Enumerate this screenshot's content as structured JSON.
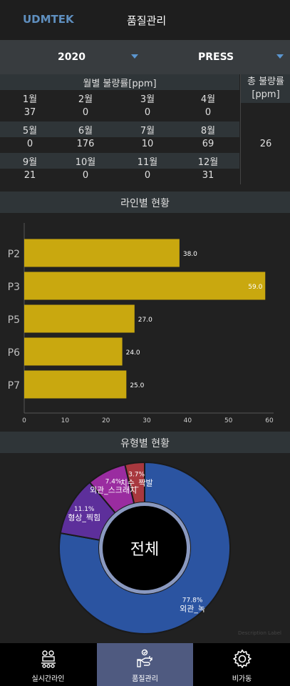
{
  "header": {
    "brand": "UDMTEK",
    "title": "품질관리"
  },
  "filters": {
    "year": "2020",
    "process": "PRESS"
  },
  "monthly": {
    "title": "월별 불량률[ppm]",
    "rows": [
      {
        "months": [
          "1월",
          "2월",
          "3월",
          "4월"
        ],
        "values": [
          "37",
          "0",
          "0",
          "0"
        ]
      },
      {
        "months": [
          "5월",
          "6월",
          "7월",
          "8월"
        ],
        "values": [
          "0",
          "176",
          "10",
          "69"
        ]
      },
      {
        "months": [
          "9월",
          "10월",
          "11월",
          "12월"
        ],
        "values": [
          "21",
          "0",
          "0",
          "31"
        ]
      }
    ],
    "total_label_line1": "총 불량률",
    "total_label_line2": "[ppm]",
    "total_value": "26"
  },
  "line_section": {
    "title": "라인별 현황"
  },
  "type_section": {
    "title": "유형별 현황",
    "center_label": "전체",
    "description_label": "Description Label"
  },
  "chart_data": [
    {
      "type": "bar",
      "orientation": "horizontal",
      "categories": [
        "P2",
        "P3",
        "P5",
        "P6",
        "P7"
      ],
      "values": [
        38.0,
        59.0,
        27.0,
        24.0,
        25.0
      ],
      "value_labels": [
        "38.0",
        "59.0",
        "27.0",
        "24.0",
        "25.0"
      ],
      "xlim": [
        0,
        60
      ],
      "xticks": [
        0,
        10,
        20,
        30,
        40,
        50,
        60
      ],
      "grid": false,
      "color": "#c9a80f"
    },
    {
      "type": "pie",
      "style": "donut",
      "slices": [
        {
          "name": "외관_녹",
          "percent": 77.8,
          "label": "77.8%",
          "color": "#2b54a1"
        },
        {
          "name": "형상_찍힘",
          "percent": 11.1,
          "label": "11.1%",
          "color": "#5d2f9b"
        },
        {
          "name": "외관_스크래치",
          "percent": 7.4,
          "label": "7.4%",
          "color": "#9a2ca0"
        },
        {
          "name": "치수_짝발",
          "percent": 3.7,
          "label": "3.7%",
          "color": "#a8383e"
        }
      ]
    }
  ],
  "nav": {
    "items": [
      {
        "label": "실시간라인",
        "icon": "factory-line-icon"
      },
      {
        "label": "품질관리",
        "icon": "quality-hand-icon"
      },
      {
        "label": "비가동",
        "icon": "gear-icon"
      }
    ]
  }
}
